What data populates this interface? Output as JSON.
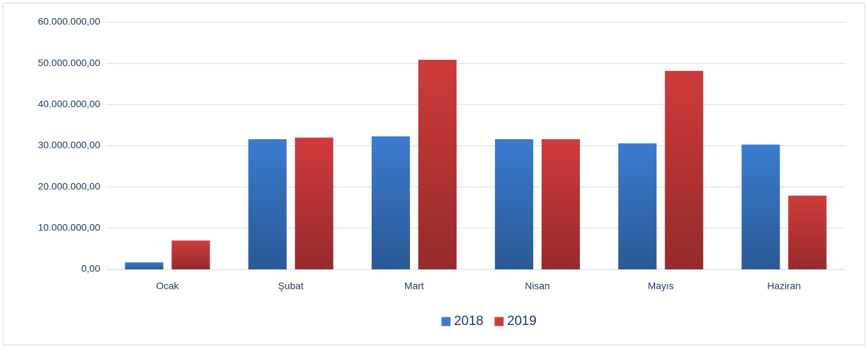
{
  "chart_data": {
    "type": "bar",
    "categories": [
      "Ocak",
      "Şubat",
      "Mart",
      "Nisan",
      "Mayıs",
      "Haziran"
    ],
    "series": [
      {
        "name": "2018",
        "color": "#3b7bcf",
        "values": [
          1700000,
          31600000,
          32300000,
          31600000,
          30600000,
          30300000
        ]
      },
      {
        "name": "2019",
        "color": "#cf3b3b",
        "values": [
          7000000,
          32000000,
          50900000,
          31600000,
          48200000,
          17900000
        ]
      }
    ],
    "ylim": [
      0,
      60000000
    ],
    "yticks": [
      {
        "value": 0,
        "label": "0,00"
      },
      {
        "value": 10000000,
        "label": "10.000.000,00"
      },
      {
        "value": 20000000,
        "label": "20.000.000,00"
      },
      {
        "value": 30000000,
        "label": "30.000.000,00"
      },
      {
        "value": 40000000,
        "label": "40.000.000,00"
      },
      {
        "value": 50000000,
        "label": "50.000.000,00"
      },
      {
        "value": 60000000,
        "label": "60.000.000,00"
      }
    ],
    "grid": true,
    "legend": "bottom"
  }
}
